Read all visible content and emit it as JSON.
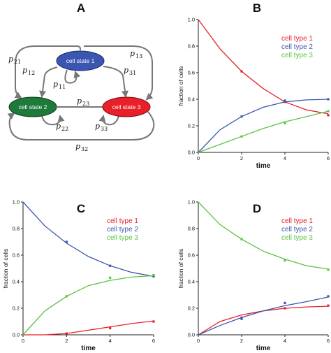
{
  "panels": [
    "A",
    "B",
    "C",
    "D"
  ],
  "diagram": {
    "states": [
      {
        "label": "cell state 1",
        "color": "#3b56b0"
      },
      {
        "label": "cell state 2",
        "color": "#1e7a3a"
      },
      {
        "label": "cell state 3",
        "color": "#e8202a"
      }
    ],
    "transitions": [
      {
        "p": "p",
        "sub": "21"
      },
      {
        "p": "p",
        "sub": "13"
      },
      {
        "p": "p",
        "sub": "12"
      },
      {
        "p": "p",
        "sub": "31"
      },
      {
        "p": "p",
        "sub": "11"
      },
      {
        "p": "p",
        "sub": "23"
      },
      {
        "p": "p",
        "sub": "22"
      },
      {
        "p": "p",
        "sub": "33"
      },
      {
        "p": "p",
        "sub": "32"
      }
    ]
  },
  "chart_data": [
    {
      "panel": "B",
      "type": "line",
      "xlabel": "time",
      "ylabel": "fraction of cells",
      "xlim": [
        0,
        6
      ],
      "ylim": [
        0,
        1
      ],
      "xticks": [
        "0",
        "2",
        "4",
        "6"
      ],
      "yticks": [
        "0.0",
        "0.2",
        "0.4",
        "0.6",
        "0.8",
        "1.0"
      ],
      "legend_position": "top-right",
      "series": [
        {
          "name": "cell type 1",
          "color": "#e8202a",
          "x": [
            0,
            1,
            2,
            3,
            4,
            5,
            6
          ],
          "y": [
            1.0,
            0.78,
            0.61,
            0.48,
            0.38,
            0.32,
            0.29
          ],
          "points_x": [
            2,
            4,
            6
          ],
          "points_y": [
            0.61,
            0.38,
            0.28
          ]
        },
        {
          "name": "cell type 2",
          "color": "#3b56b0",
          "x": [
            0,
            1,
            2,
            3,
            4,
            5,
            6
          ],
          "y": [
            0.0,
            0.17,
            0.27,
            0.34,
            0.38,
            0.395,
            0.4
          ],
          "points_x": [
            2,
            4,
            6
          ],
          "points_y": [
            0.27,
            0.39,
            0.4
          ]
        },
        {
          "name": "cell type 3",
          "color": "#5cc243",
          "x": [
            0,
            1,
            2,
            3,
            4,
            5,
            6
          ],
          "y": [
            0.0,
            0.06,
            0.12,
            0.18,
            0.23,
            0.27,
            0.31
          ],
          "points_x": [
            2,
            4,
            6
          ],
          "points_y": [
            0.12,
            0.22,
            0.31
          ]
        }
      ]
    },
    {
      "panel": "C",
      "type": "line",
      "xlabel": "time",
      "ylabel": "fraction of cells",
      "xlim": [
        0,
        6
      ],
      "ylim": [
        0,
        1
      ],
      "xticks": [
        "0",
        "2",
        "4",
        "6"
      ],
      "yticks": [
        "0.0",
        "0.2",
        "0.4",
        "0.6",
        "0.8",
        "1.0"
      ],
      "legend_position": "top-right",
      "series": [
        {
          "name": "cell type 1",
          "color": "#e8202a",
          "x": [
            0,
            1,
            2,
            3,
            4,
            5,
            6
          ],
          "y": [
            0.0,
            0.0,
            0.01,
            0.035,
            0.06,
            0.085,
            0.105
          ],
          "points_x": [
            2,
            4,
            6
          ],
          "points_y": [
            0.01,
            0.05,
            0.1
          ]
        },
        {
          "name": "cell type 2",
          "color": "#3b56b0",
          "x": [
            0,
            1,
            2,
            3,
            4,
            5,
            6
          ],
          "y": [
            1.0,
            0.82,
            0.69,
            0.59,
            0.52,
            0.47,
            0.44
          ],
          "points_x": [
            2,
            4,
            6
          ],
          "points_y": [
            0.7,
            0.52,
            0.44
          ]
        },
        {
          "name": "cell type 3",
          "color": "#5cc243",
          "x": [
            0,
            1,
            2,
            3,
            4,
            5,
            6
          ],
          "y": [
            0.0,
            0.18,
            0.29,
            0.37,
            0.41,
            0.435,
            0.445
          ],
          "points_x": [
            2,
            4,
            6
          ],
          "points_y": [
            0.29,
            0.43,
            0.45
          ]
        }
      ]
    },
    {
      "panel": "D",
      "type": "line",
      "xlabel": "time",
      "ylabel": "fraction of cells",
      "xlim": [
        0,
        6
      ],
      "ylim": [
        0,
        1
      ],
      "xticks": [
        "0",
        "2",
        "4",
        "6"
      ],
      "yticks": [
        "0.0",
        "0.2",
        "0.4",
        "0.6",
        "0.8",
        "1.0"
      ],
      "legend_position": "top-right",
      "series": [
        {
          "name": "cell type 1",
          "color": "#e8202a",
          "x": [
            0,
            1,
            2,
            3,
            4,
            5,
            6
          ],
          "y": [
            0.0,
            0.1,
            0.15,
            0.18,
            0.2,
            0.21,
            0.215
          ],
          "points_x": [
            2,
            4,
            6
          ],
          "points_y": [
            0.13,
            0.2,
            0.22
          ]
        },
        {
          "name": "cell type 2",
          "color": "#3b56b0",
          "x": [
            0,
            1,
            2,
            3,
            4,
            5,
            6
          ],
          "y": [
            0.0,
            0.07,
            0.13,
            0.18,
            0.22,
            0.25,
            0.285
          ],
          "points_x": [
            2,
            4,
            6
          ],
          "points_y": [
            0.12,
            0.24,
            0.29
          ]
        },
        {
          "name": "cell type 3",
          "color": "#5cc243",
          "x": [
            0,
            1,
            2,
            3,
            4,
            5,
            6
          ],
          "y": [
            1.0,
            0.83,
            0.72,
            0.63,
            0.57,
            0.52,
            0.495
          ],
          "points_x": [
            2,
            4,
            6
          ],
          "points_y": [
            0.72,
            0.56,
            0.49
          ]
        }
      ]
    }
  ]
}
